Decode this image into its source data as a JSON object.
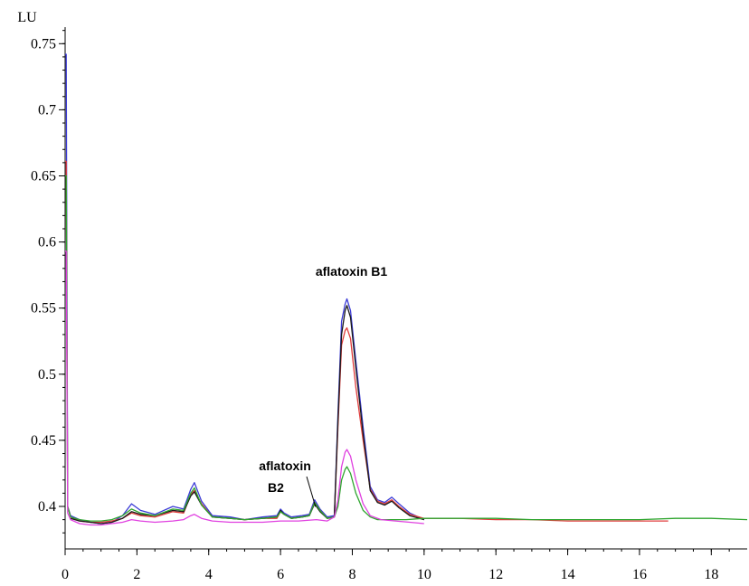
{
  "chart_data": {
    "type": "line",
    "ylabel": "LU",
    "xlim": [
      0,
      19
    ],
    "ylim": [
      0.375,
      0.755
    ],
    "x_ticks": [
      0,
      2,
      4,
      6,
      8,
      10,
      12,
      14,
      16,
      18
    ],
    "y_ticks": [
      0.4,
      0.45,
      0.5,
      0.55,
      0.6,
      0.65,
      0.7,
      0.75
    ],
    "x_tick_labels": [
      "0",
      "2",
      "4",
      "6",
      "8",
      "10",
      "12",
      "14",
      "16",
      "18"
    ],
    "y_tick_labels": [
      "0.4",
      "0.45",
      "0.5",
      "0.55",
      "0.6",
      "0.65",
      "0.7",
      "0.75"
    ],
    "grid": false,
    "annotations": [
      {
        "text": "aflatoxin B1",
        "x": 7.85,
        "y": 0.558
      },
      {
        "lines": [
          "aflatoxin",
          "B2"
        ],
        "x": 6.95,
        "y": 0.397
      }
    ],
    "series": [
      {
        "color": "#3b3bd6",
        "x": [
          0,
          0.03,
          0.07,
          0.15,
          0.4,
          0.7,
          1.0,
          1.3,
          1.6,
          1.85,
          2.1,
          2.5,
          3.0,
          3.3,
          3.5,
          3.6,
          3.8,
          4.1,
          4.6,
          5.0,
          5.5,
          5.9,
          6.0,
          6.1,
          6.3,
          6.6,
          6.8,
          6.95,
          7.1,
          7.3,
          7.5,
          7.6,
          7.7,
          7.8,
          7.85,
          7.95,
          8.1,
          8.3,
          8.5,
          8.7,
          8.9,
          9.1,
          9.3,
          9.6,
          10.0
        ],
        "y": [
          0.742,
          0.742,
          0.4,
          0.393,
          0.39,
          0.388,
          0.387,
          0.388,
          0.393,
          0.402,
          0.397,
          0.394,
          0.4,
          0.398,
          0.413,
          0.418,
          0.404,
          0.393,
          0.392,
          0.39,
          0.392,
          0.393,
          0.398,
          0.395,
          0.392,
          0.393,
          0.394,
          0.405,
          0.398,
          0.392,
          0.393,
          0.47,
          0.54,
          0.553,
          0.557,
          0.548,
          0.51,
          0.46,
          0.415,
          0.405,
          0.403,
          0.407,
          0.402,
          0.395,
          0.39
        ]
      },
      {
        "color": "#e03c3c",
        "x": [
          0,
          0.03,
          0.07,
          0.15,
          0.4,
          0.7,
          1.0,
          1.3,
          1.6,
          1.85,
          2.1,
          2.5,
          3.0,
          3.3,
          3.5,
          3.6,
          3.8,
          4.1,
          4.6,
          5.0,
          5.5,
          5.9,
          6.0,
          6.1,
          6.3,
          6.6,
          6.8,
          6.95,
          7.1,
          7.3,
          7.5,
          7.6,
          7.7,
          7.8,
          7.85,
          7.95,
          8.1,
          8.3,
          8.5,
          8.7,
          8.9,
          9.1,
          9.3,
          9.6,
          10.0,
          11.0,
          12.0,
          13.0,
          14.0,
          15.0,
          16.0,
          16.8
        ],
        "y": [
          0.661,
          0.661,
          0.4,
          0.392,
          0.389,
          0.388,
          0.388,
          0.389,
          0.391,
          0.395,
          0.393,
          0.392,
          0.396,
          0.395,
          0.409,
          0.412,
          0.402,
          0.392,
          0.391,
          0.39,
          0.391,
          0.391,
          0.396,
          0.394,
          0.391,
          0.392,
          0.393,
          0.403,
          0.397,
          0.391,
          0.392,
          0.46,
          0.522,
          0.533,
          0.535,
          0.527,
          0.49,
          0.45,
          0.413,
          0.404,
          0.402,
          0.405,
          0.4,
          0.394,
          0.391,
          0.391,
          0.39,
          0.39,
          0.389,
          0.389,
          0.389,
          0.389
        ]
      },
      {
        "color": "#1a1a1a",
        "x": [
          0.15,
          0.4,
          0.7,
          1.0,
          1.3,
          1.6,
          1.85,
          2.1,
          2.5,
          3.0,
          3.3,
          3.5,
          3.6,
          3.8,
          4.1,
          4.6,
          5.0,
          5.5,
          5.9,
          6.0,
          6.1,
          6.3,
          6.6,
          6.8,
          6.95,
          7.1,
          7.3,
          7.5,
          7.6,
          7.7,
          7.8,
          7.85,
          7.95,
          8.1,
          8.3,
          8.5,
          8.7,
          8.9,
          9.1,
          9.3,
          9.6,
          10.0
        ],
        "y": [
          0.391,
          0.389,
          0.388,
          0.387,
          0.388,
          0.391,
          0.396,
          0.394,
          0.393,
          0.397,
          0.396,
          0.408,
          0.411,
          0.401,
          0.392,
          0.391,
          0.39,
          0.391,
          0.392,
          0.397,
          0.394,
          0.391,
          0.392,
          0.393,
          0.402,
          0.396,
          0.391,
          0.392,
          0.465,
          0.53,
          0.548,
          0.552,
          0.543,
          0.505,
          0.455,
          0.412,
          0.403,
          0.401,
          0.404,
          0.399,
          0.393,
          0.39
        ]
      },
      {
        "color": "#2fa52f",
        "x": [
          0,
          0.03,
          0.07,
          0.15,
          0.4,
          0.7,
          1.0,
          1.3,
          1.6,
          1.85,
          2.1,
          2.5,
          3.0,
          3.3,
          3.5,
          3.6,
          3.8,
          4.1,
          4.6,
          5.0,
          5.5,
          5.9,
          6.0,
          6.1,
          6.3,
          6.6,
          6.8,
          6.95,
          7.1,
          7.3,
          7.5,
          7.6,
          7.7,
          7.8,
          7.85,
          7.95,
          8.1,
          8.3,
          8.5,
          8.7,
          9.0,
          9.5,
          10.0,
          11.0,
          12.0,
          13.0,
          14.0,
          15.0,
          16.0,
          17.0,
          18.0,
          19.0
        ],
        "y": [
          0.65,
          0.65,
          0.4,
          0.392,
          0.39,
          0.389,
          0.389,
          0.39,
          0.393,
          0.398,
          0.395,
          0.393,
          0.398,
          0.397,
          0.41,
          0.414,
          0.401,
          0.392,
          0.391,
          0.39,
          0.391,
          0.392,
          0.396,
          0.394,
          0.391,
          0.392,
          0.393,
          0.403,
          0.397,
          0.391,
          0.392,
          0.4,
          0.42,
          0.428,
          0.43,
          0.425,
          0.41,
          0.397,
          0.392,
          0.39,
          0.39,
          0.39,
          0.391,
          0.391,
          0.391,
          0.39,
          0.39,
          0.39,
          0.39,
          0.391,
          0.391,
          0.39
        ]
      },
      {
        "color": "#e040e0",
        "x": [
          0,
          0.03,
          0.07,
          0.15,
          0.4,
          0.7,
          1.0,
          1.3,
          1.6,
          1.85,
          2.1,
          2.5,
          3.0,
          3.3,
          3.5,
          3.6,
          3.8,
          4.1,
          4.6,
          5.0,
          5.5,
          6.0,
          6.5,
          7.0,
          7.3,
          7.5,
          7.6,
          7.7,
          7.8,
          7.85,
          7.95,
          8.1,
          8.3,
          8.5,
          8.8,
          9.2,
          9.6,
          10.0
        ],
        "y": [
          0.593,
          0.593,
          0.395,
          0.39,
          0.387,
          0.386,
          0.386,
          0.387,
          0.388,
          0.39,
          0.389,
          0.388,
          0.389,
          0.39,
          0.393,
          0.394,
          0.391,
          0.389,
          0.388,
          0.388,
          0.388,
          0.389,
          0.389,
          0.39,
          0.389,
          0.392,
          0.405,
          0.43,
          0.441,
          0.443,
          0.438,
          0.42,
          0.402,
          0.393,
          0.39,
          0.389,
          0.388,
          0.387
        ]
      }
    ]
  }
}
